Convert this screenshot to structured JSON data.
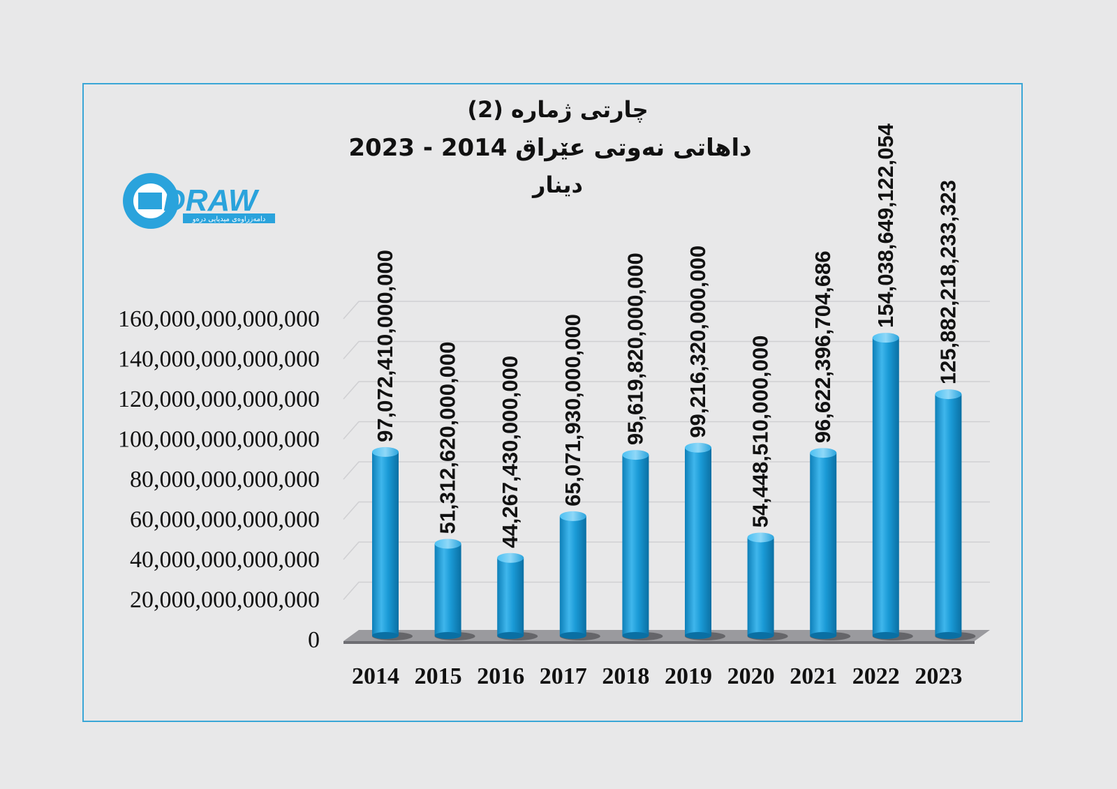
{
  "title": {
    "line1": "چارتی ژمارە (2)",
    "line2": "داهاتی نەوتی عێراق  2014 - 2023",
    "line3": "دینار"
  },
  "logo": {
    "text": "DRAW",
    "tagline": "دامەزراوەی میدیایی درەو",
    "color": "#2aa3dc"
  },
  "chart_data": {
    "type": "bar",
    "categories": [
      "2014",
      "2015",
      "2016",
      "2017",
      "2018",
      "2019",
      "2020",
      "2021",
      "2022",
      "2023"
    ],
    "values": [
      97072410000000,
      51312620000000,
      44267430000000,
      65071930000000,
      95619820000000,
      99216320000000,
      54448510000000,
      96622396704686,
      154038649122054,
      125882218233323
    ],
    "data_labels": [
      "97,072,410,000,000",
      "51,312,620,000,000",
      "44,267,430,000,000",
      "65,071,930,000,000",
      "95,619,820,000,000",
      "99,216,320,000,000",
      "54,448,510,000,000",
      "96,622,396,704,686",
      "154,038,649,122,054",
      "125,882,218,233,323"
    ],
    "yticks": [
      0,
      20000000000000,
      40000000000000,
      60000000000000,
      80000000000000,
      100000000000000,
      120000000000000,
      140000000000000,
      160000000000000
    ],
    "ytick_labels": [
      "0",
      "20,000,000,000,000",
      "40,000,000,000,000",
      "60,000,000,000,000",
      "80,000,000,000,000",
      "100,000,000,000,000",
      "120,000,000,000,000",
      "140,000,000,000,000",
      "160,000,000,000,000"
    ],
    "ylim": [
      0,
      160000000000000
    ],
    "grid": true,
    "bar_color": "#1a9ad6",
    "title": "چارتی ژمارە (2) داهاتی نەوتی عێراق  2014 - 2023 دینار",
    "xlabel": "",
    "ylabel": ""
  }
}
